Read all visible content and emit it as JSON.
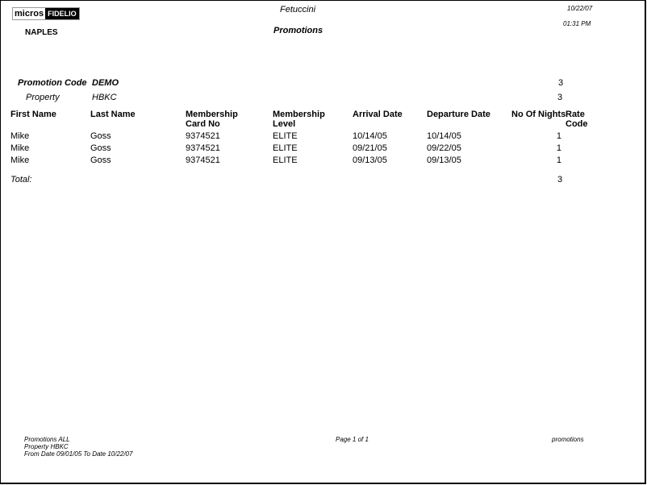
{
  "logo": {
    "part1": "micros",
    "part2": "FIDELIO"
  },
  "header": {
    "property_name": "NAPLES",
    "company": "Fetuccini",
    "report_title": "Promotions",
    "date": "10/22/07",
    "time": "01:31 PM"
  },
  "group": {
    "promotion_code_label": "Promotion Code",
    "promotion_code": "DEMO",
    "promotion_count": "3",
    "property_label": "Property",
    "property": "HBKC",
    "property_count": "3"
  },
  "table": {
    "columns": [
      {
        "line1": "First Name",
        "line2": ""
      },
      {
        "line1": "Last Name",
        "line2": ""
      },
      {
        "line1": "Membership",
        "line2": "Card No"
      },
      {
        "line1": "Membership",
        "line2": "Level"
      },
      {
        "line1": "Arrival Date",
        "line2": ""
      },
      {
        "line1": "Departure Date",
        "line2": ""
      },
      {
        "line1": "No Of Nights",
        "line2": ""
      },
      {
        "line1": "Rate",
        "line2": "Code"
      }
    ],
    "rows": [
      [
        "Mike",
        "Goss",
        "9374521",
        "ELITE",
        "10/14/05",
        "10/14/05",
        "1",
        ""
      ],
      [
        "Mike",
        "Goss",
        "9374521",
        "ELITE",
        "09/21/05",
        "09/22/05",
        "1",
        ""
      ],
      [
        "Mike",
        "Goss",
        "9374521",
        "ELITE",
        "09/13/05",
        "09/13/05",
        "1",
        ""
      ]
    ],
    "total_label": "Total:",
    "total_value": "3"
  },
  "footer": {
    "line1": "Promotions   ALL",
    "line2": "Property  HBKC",
    "line3": "From Date  09/01/05    To Date  10/22/07",
    "page": "Page 1 of 1",
    "report_name": "promotions"
  }
}
